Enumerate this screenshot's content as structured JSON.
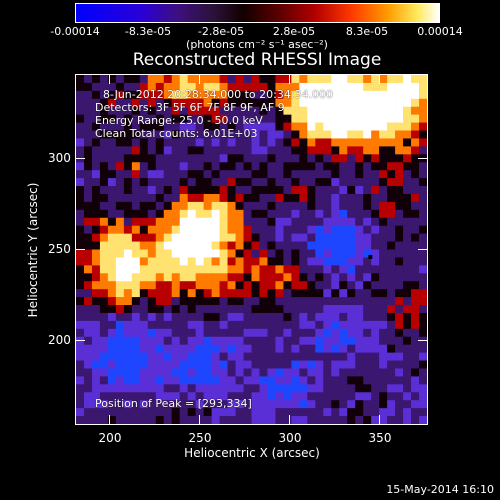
{
  "colorbar": {
    "ticks": [
      "-0.00014",
      "-8.3e-05",
      "-2.8e-05",
      "2.8e-05",
      "8.3e-05",
      "0.00014"
    ],
    "units": "(photons cm⁻² s⁻¹ asec⁻²)"
  },
  "image": {
    "title": "Reconstructed RHESSI Image",
    "info": {
      "time_range": "8-Jun-2012 20:28:34.000 to 20:34:34.000",
      "detectors": "Detectors: 3F 5F 6F 7F 8F 9F, AF 9",
      "energy_range": "Energy Range: 25.0 - 50.0 keV",
      "clean_counts": "Clean     Total counts: 6.01E+03"
    },
    "peak": "Position of Peak = [293,334]",
    "xlabel": "Heliocentric X (arcsec)",
    "ylabel": "Heliocentric Y (arcsec)",
    "x_ticks": [
      "200",
      "250",
      "300",
      "350"
    ],
    "y_ticks": [
      "300",
      "250",
      "200"
    ],
    "footer_date": "15-May-2014 16:10",
    "colors": {
      "blue": "#1f46ff",
      "violet": "#5a2fd5",
      "purple": "#3b176f",
      "dark": "#120009",
      "red": "#b80000",
      "orange": "#ff7a00",
      "yellow": "#ffe26f",
      "white": "#ffffff"
    }
  }
}
